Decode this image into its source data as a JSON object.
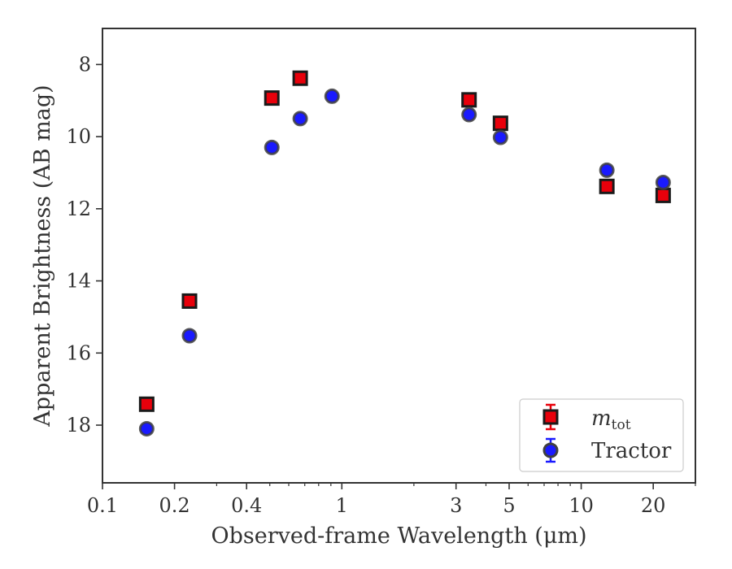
{
  "chart_data": {
    "type": "scatter",
    "xlabel": "Observed-frame Wavelength (μm)",
    "ylabel": "Apparent Brightness (AB mag)",
    "xscale": "log",
    "yaxis_inverted": true,
    "xlim": [
      0.1,
      30
    ],
    "ylim": [
      19.6,
      7.0
    ],
    "xticks": [
      {
        "value": 0.1,
        "label": "0.1"
      },
      {
        "value": 0.2,
        "label": "0.2"
      },
      {
        "value": 0.4,
        "label": "0.4"
      },
      {
        "value": 1,
        "label": "1"
      },
      {
        "value": 3,
        "label": "3"
      },
      {
        "value": 5,
        "label": "5"
      },
      {
        "value": 10,
        "label": "10"
      },
      {
        "value": 20,
        "label": "20"
      }
    ],
    "yticks": [
      {
        "value": 8,
        "label": "8"
      },
      {
        "value": 10,
        "label": "10"
      },
      {
        "value": 12,
        "label": "12"
      },
      {
        "value": 14,
        "label": "14"
      },
      {
        "value": 16,
        "label": "16"
      },
      {
        "value": 18,
        "label": "18"
      }
    ],
    "grid": false,
    "legend_position": "lower-right",
    "series": [
      {
        "name": "m_tot",
        "marker": "square",
        "color": "#e8000b",
        "edge_color": "#1a1a1a",
        "points": [
          {
            "x": 0.153,
            "y": 17.42
          },
          {
            "x": 0.231,
            "y": 14.56
          },
          {
            "x": 0.51,
            "y": 8.93
          },
          {
            "x": 0.67,
            "y": 8.38
          },
          {
            "x": 3.4,
            "y": 8.98
          },
          {
            "x": 4.6,
            "y": 9.63
          },
          {
            "x": 12.8,
            "y": 11.38
          },
          {
            "x": 22.0,
            "y": 11.63
          }
        ]
      },
      {
        "name": "Tractor",
        "marker": "circle",
        "color": "#1a1aff",
        "edge_color": "#404040",
        "points": [
          {
            "x": 0.153,
            "y": 18.1
          },
          {
            "x": 0.231,
            "y": 15.52
          },
          {
            "x": 0.51,
            "y": 10.3
          },
          {
            "x": 0.67,
            "y": 9.5
          },
          {
            "x": 0.91,
            "y": 8.88
          },
          {
            "x": 3.4,
            "y": 9.39
          },
          {
            "x": 4.6,
            "y": 10.02
          },
          {
            "x": 12.8,
            "y": 10.93
          },
          {
            "x": 22.0,
            "y": 11.27
          }
        ]
      }
    ],
    "legend": [
      {
        "label_main": "m",
        "label_sub": "tot"
      },
      {
        "label_main": "Tractor"
      }
    ]
  }
}
